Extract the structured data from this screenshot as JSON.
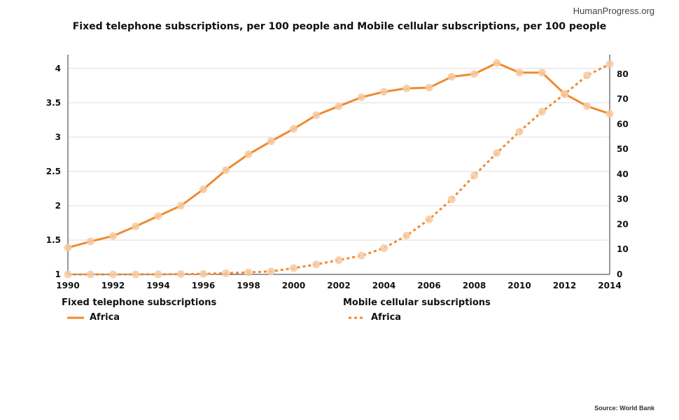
{
  "watermark": "HumanProgress.org",
  "source": "Source: World Bank",
  "chart_data": {
    "type": "line",
    "title": "Fixed telephone subscriptions, per 100 people and Mobile cellular subscriptions, per 100 people",
    "x": [
      1990,
      1991,
      1992,
      1993,
      1994,
      1995,
      1996,
      1997,
      1998,
      1999,
      2000,
      2001,
      2002,
      2003,
      2004,
      2005,
      2006,
      2007,
      2008,
      2009,
      2010,
      2011,
      2012,
      2013,
      2014
    ],
    "x_ticks": [
      "1990",
      "1992",
      "1994",
      "1996",
      "1998",
      "2000",
      "2002",
      "2004",
      "2006",
      "2008",
      "2010",
      "2012",
      "2014"
    ],
    "y_left": {
      "ylim": [
        1,
        4.1
      ],
      "ticks": [
        "1",
        "1.5",
        "2",
        "2.5",
        "3",
        "3.5",
        "4"
      ]
    },
    "y_right": {
      "ylim": [
        0,
        85
      ],
      "ticks": [
        "0",
        "10",
        "20",
        "30",
        "40",
        "50",
        "60",
        "70",
        "80"
      ]
    },
    "grid": true,
    "legend_placement": "bottom",
    "series": [
      {
        "group_title": "Fixed telephone subscriptions",
        "name": "Africa",
        "axis": "left",
        "style": "solid",
        "color": "#F08A2F",
        "values": [
          1.39,
          1.48,
          1.56,
          1.7,
          1.85,
          2.0,
          2.24,
          2.52,
          2.75,
          2.94,
          3.12,
          3.32,
          3.45,
          3.58,
          3.66,
          3.71,
          3.72,
          3.88,
          3.92,
          4.08,
          3.94,
          3.94,
          3.63,
          3.45,
          3.34
        ]
      },
      {
        "group_title": "Mobile cellular subscriptions",
        "name": "Africa",
        "axis": "right",
        "style": "dotted",
        "color": "#F08A2F",
        "values": [
          0.0,
          0.0,
          0.0,
          0.0,
          0.05,
          0.1,
          0.2,
          0.5,
          0.8,
          1.2,
          2.5,
          4.0,
          5.7,
          7.5,
          10.5,
          15.5,
          22.0,
          30.0,
          39.5,
          48.5,
          57.0,
          65.0,
          72.0,
          79.5,
          84.0
        ]
      }
    ]
  }
}
